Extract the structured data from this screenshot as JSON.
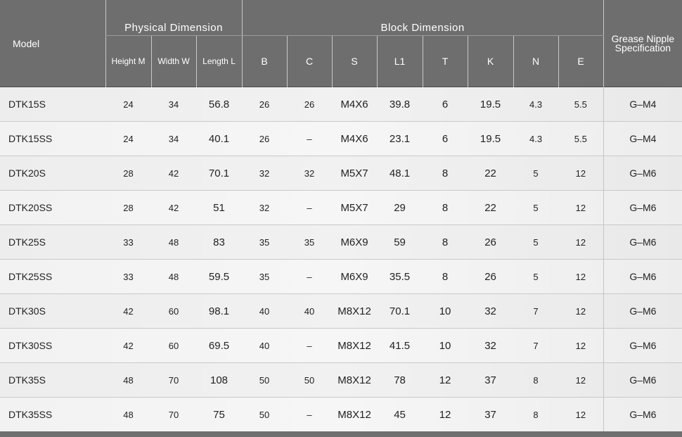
{
  "header": {
    "model_label": "Model",
    "physical_group": "Physical Dimension",
    "block_group": "Block Dimension",
    "grease_label_line1": "Grease Nipple",
    "grease_label_line2": "Specification",
    "columns": {
      "height": "Height M",
      "width": "Width W",
      "length": "Length L",
      "b": "B",
      "c": "C",
      "s": "S",
      "l1": "L1",
      "t": "T",
      "k": "K",
      "n": "N",
      "e": "E"
    }
  },
  "rows": [
    {
      "model": "DTK15S",
      "height": "24",
      "width": "34",
      "length": "56.8",
      "b": "26",
      "c": "26",
      "s": "M4X6",
      "l1": "39.8",
      "t": "6",
      "k": "19.5",
      "n": "4.3",
      "e": "5.5",
      "grease": "G–M4"
    },
    {
      "model": "DTK15SS",
      "height": "24",
      "width": "34",
      "length": "40.1",
      "b": "26",
      "c": "–",
      "s": "M4X6",
      "l1": "23.1",
      "t": "6",
      "k": "19.5",
      "n": "4.3",
      "e": "5.5",
      "grease": "G–M4"
    },
    {
      "model": "DTK20S",
      "height": "28",
      "width": "42",
      "length": "70.1",
      "b": "32",
      "c": "32",
      "s": "M5X7",
      "l1": "48.1",
      "t": "8",
      "k": "22",
      "n": "5",
      "e": "12",
      "grease": "G–M6"
    },
    {
      "model": "DTK20SS",
      "height": "28",
      "width": "42",
      "length": "51",
      "b": "32",
      "c": "–",
      "s": "M5X7",
      "l1": "29",
      "t": "8",
      "k": "22",
      "n": "5",
      "e": "12",
      "grease": "G–M6"
    },
    {
      "model": "DTK25S",
      "height": "33",
      "width": "48",
      "length": "83",
      "b": "35",
      "c": "35",
      "s": "M6X9",
      "l1": "59",
      "t": "8",
      "k": "26",
      "n": "5",
      "e": "12",
      "grease": "G–M6"
    },
    {
      "model": "DTK25SS",
      "height": "33",
      "width": "48",
      "length": "59.5",
      "b": "35",
      "c": "–",
      "s": "M6X9",
      "l1": "35.5",
      "t": "8",
      "k": "26",
      "n": "5",
      "e": "12",
      "grease": "G–M6"
    },
    {
      "model": "DTK30S",
      "height": "42",
      "width": "60",
      "length": "98.1",
      "b": "40",
      "c": "40",
      "s": "M8X12",
      "l1": "70.1",
      "t": "10",
      "k": "32",
      "n": "7",
      "e": "12",
      "grease": "G–M6"
    },
    {
      "model": "DTK30SS",
      "height": "42",
      "width": "60",
      "length": "69.5",
      "b": "40",
      "c": "–",
      "s": "M8X12",
      "l1": "41.5",
      "t": "10",
      "k": "32",
      "n": "7",
      "e": "12",
      "grease": "G–M6"
    },
    {
      "model": "DTK35S",
      "height": "48",
      "width": "70",
      "length": "108",
      "b": "50",
      "c": "50",
      "s": "M8X12",
      "l1": "78",
      "t": "12",
      "k": "37",
      "n": "8",
      "e": "12",
      "grease": "G–M6"
    },
    {
      "model": "DTK35SS",
      "height": "48",
      "width": "70",
      "length": "75",
      "b": "50",
      "c": "–",
      "s": "M8X12",
      "l1": "45",
      "t": "12",
      "k": "37",
      "n": "8",
      "e": "12",
      "grease": "G–M6"
    }
  ]
}
